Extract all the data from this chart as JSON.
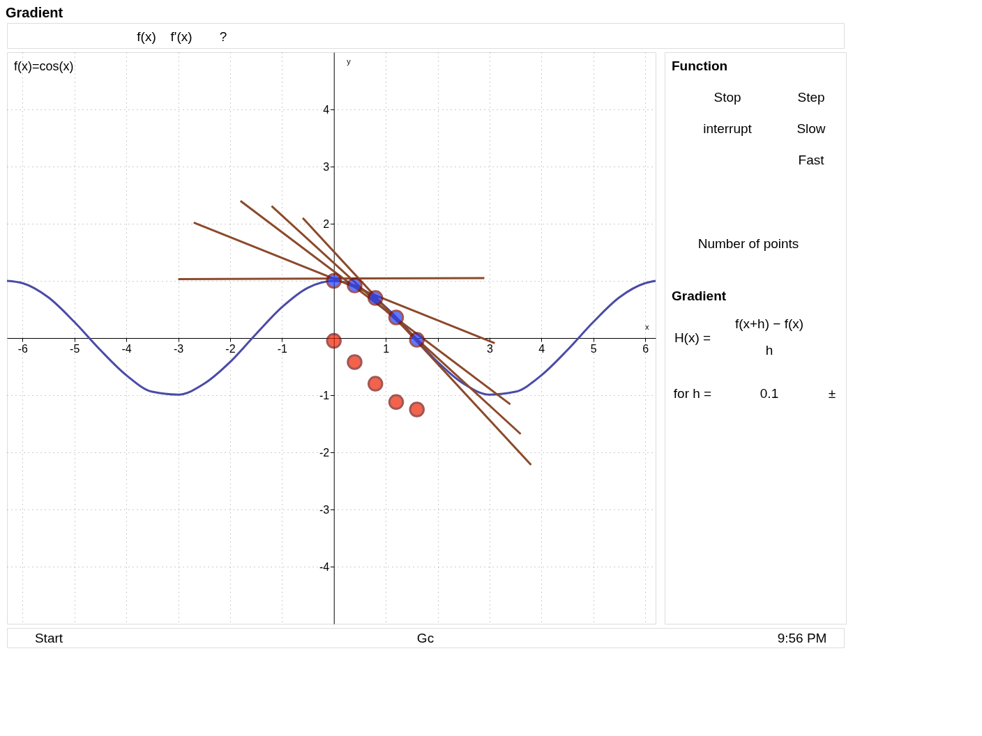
{
  "chart_data": {
    "type": "line",
    "title": "Gradient",
    "xlabel": "x",
    "ylabel": "y",
    "xlim": [
      -6.3,
      6.2
    ],
    "ylim": [
      -5,
      5
    ],
    "xticks": [
      -6,
      -5,
      -4,
      -3,
      -2,
      -1,
      1,
      {
        "value": 2,
        "label": null
      },
      3,
      4,
      5,
      6
    ],
    "yticks": [
      -4,
      -3,
      -2,
      -1,
      {
        "value": 1,
        "label": null
      },
      2,
      3,
      4
    ],
    "grid": true,
    "line_style": "solid",
    "series": [
      {
        "color": "#4b4ba8",
        "marker": "none",
        "x": [
          -6.3,
          -6,
          -5.5,
          -5,
          -4.5,
          -4,
          -3.5,
          -3,
          -2.5,
          -2,
          -1.5,
          -1,
          -0.5,
          0,
          0.5,
          1,
          1.5,
          2,
          2.5,
          3,
          3.5,
          4,
          4.5,
          5,
          5.5,
          6,
          6.2
        ],
        "values": [
          1.0,
          0.96,
          0.71,
          0.28,
          -0.21,
          -0.65,
          -0.94,
          -0.99,
          -0.8,
          -0.42,
          0.07,
          0.54,
          0.88,
          1.0,
          0.88,
          0.54,
          0.07,
          -0.42,
          -0.8,
          -0.99,
          -0.94,
          -0.65,
          -0.21,
          0.28,
          0.71,
          0.96,
          1.0
        ]
      },
      {
        "type": "scatter",
        "color": "#1f3fff",
        "marker": "circle",
        "x": [
          0,
          0.4,
          0.8,
          1.2,
          1.6
        ],
        "values": [
          1.0,
          0.92,
          0.7,
          0.36,
          -0.03
        ]
      },
      {
        "type": "scatter",
        "color": "#ee2200",
        "marker": "circle",
        "x": [
          0,
          0.4,
          0.8,
          1.2,
          1.6
        ],
        "values": [
          -0.05,
          -0.42,
          -0.8,
          -1.12,
          -1.25
        ]
      },
      {
        "color": "#8b4a2b",
        "marker": "none",
        "x": [
          -3.0,
          2.9
        ],
        "values": [
          1.03,
          1.05
        ]
      },
      {
        "color": "#8b4a2b",
        "marker": "none",
        "x": [
          -2.7,
          3.1
        ],
        "values": [
          2.02,
          -0.09
        ]
      },
      {
        "color": "#8b4a2b",
        "marker": "none",
        "x": [
          -1.8,
          3.4
        ],
        "values": [
          2.4,
          -1.16
        ]
      },
      {
        "color": "#8b4a2b",
        "marker": "none",
        "x": [
          -1.2,
          3.6
        ],
        "values": [
          2.31,
          -1.68
        ]
      },
      {
        "color": "#8b4a2b",
        "marker": "none",
        "x": [
          -0.6,
          3.8
        ],
        "values": [
          2.1,
          -2.22
        ]
      }
    ],
    "annotations": [
      "f(x)=cos(x)",
      "f(x)",
      "f'(x)",
      "?",
      "Function",
      "Stop",
      "Step",
      "interrupt",
      "Slow",
      "Fast",
      "Number of points",
      "Gradient",
      "H(x) =",
      "f(x+h) − f(x)",
      "h",
      "for h =",
      "0.1",
      "±",
      "Start",
      "Gc",
      "9:56 PM"
    ]
  }
}
